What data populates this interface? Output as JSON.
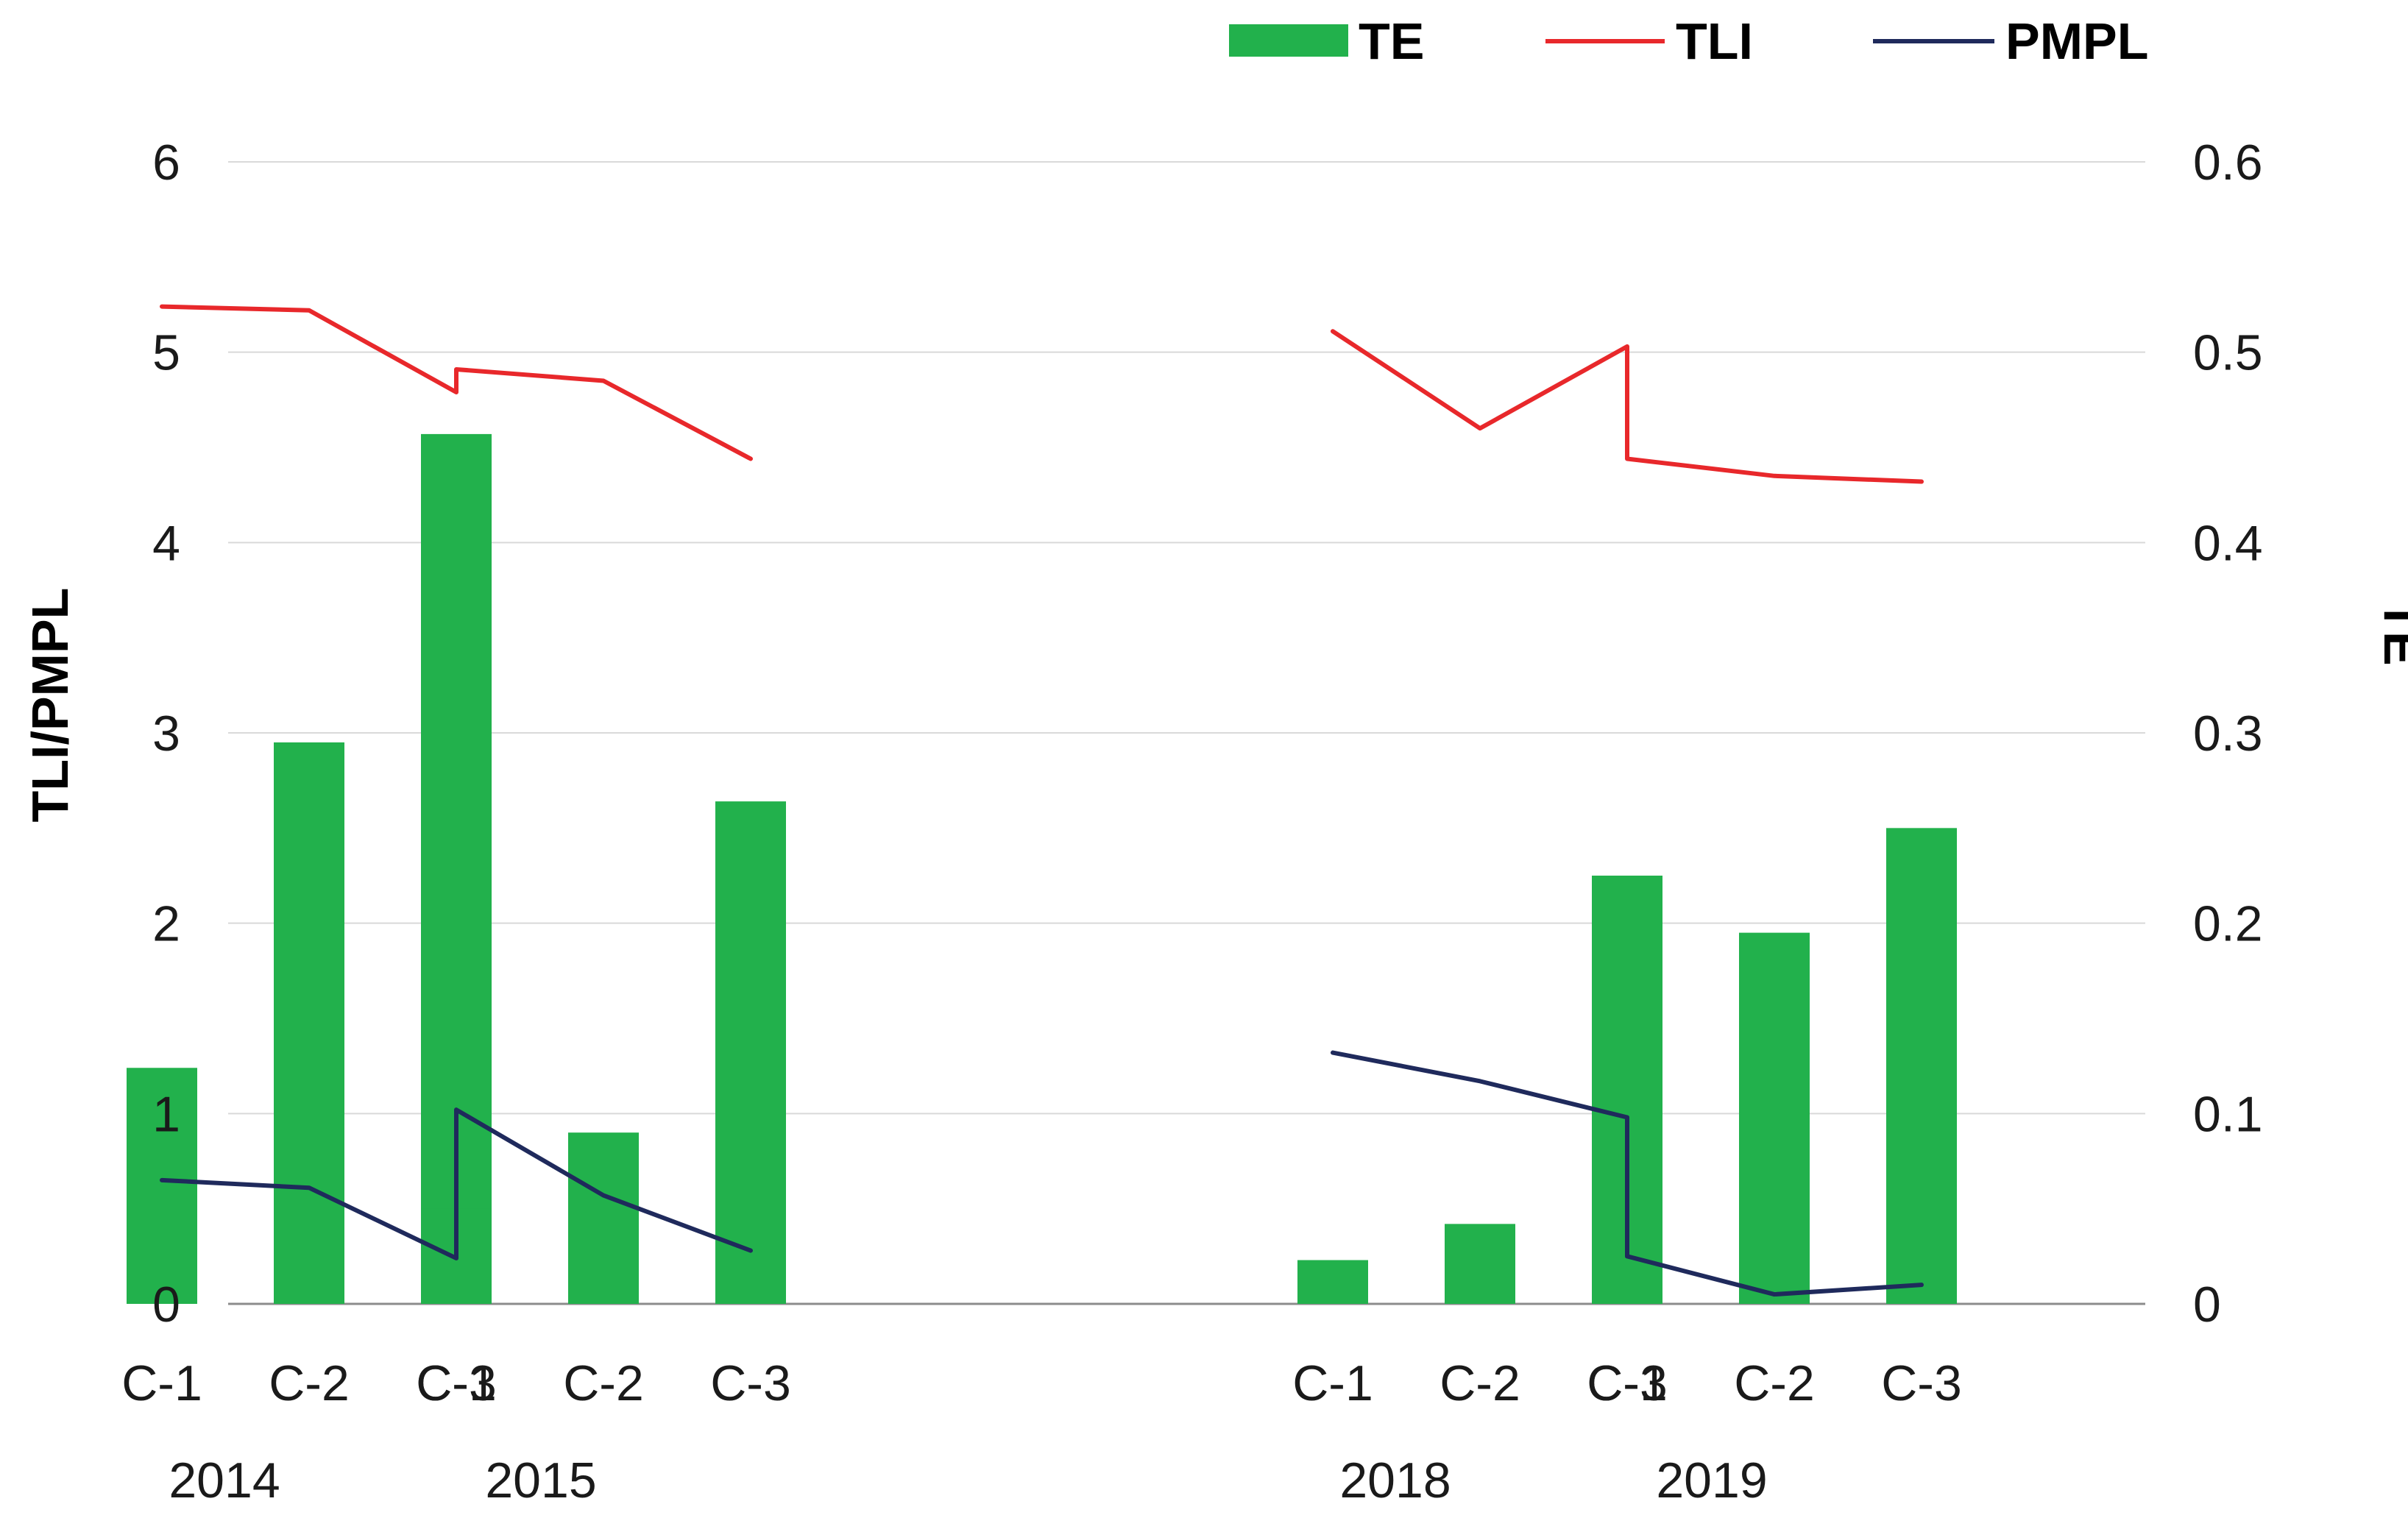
{
  "colors": {
    "te": "#22b14c",
    "tli": "#e8282b",
    "pmpl": "#1f2a5c",
    "grid": "#d9d9d9",
    "baseline": "#8c8c8c"
  },
  "chart_data": {
    "type": "bar",
    "title": "",
    "left_axis": {
      "label": "TLI/PMPL",
      "ylim": [
        0,
        6
      ],
      "ticks": [
        "0",
        "1",
        "2",
        "3",
        "4",
        "5",
        "6"
      ]
    },
    "right_axis": {
      "label": "TE",
      "ylim": [
        0,
        0.6
      ],
      "ticks": [
        "0",
        "0.1",
        "0.2",
        "0.3",
        "0.4",
        "0.5",
        "0.6"
      ]
    },
    "legend": {
      "placement": "top-right",
      "entries": [
        {
          "name": "TE",
          "kind": "bar"
        },
        {
          "name": "TLI",
          "kind": "line"
        },
        {
          "name": "PMPL",
          "kind": "line"
        }
      ]
    },
    "groups": [
      {
        "name": "2014",
        "categories": [
          "C-1",
          "C-2",
          "C-3"
        ],
        "te": [
          0.124,
          0.295,
          0.457
        ],
        "tli": [
          5.24,
          5.22,
          4.79
        ],
        "pmpl": [
          0.65,
          0.61,
          0.24
        ]
      },
      {
        "name": "2015",
        "categories": [
          "C-1",
          "C-2",
          "C-3"
        ],
        "te": [
          0.05,
          0.09,
          0.264
        ],
        "tli": [
          4.91,
          4.85,
          4.44
        ],
        "pmpl": [
          1.02,
          0.57,
          0.28
        ]
      },
      {
        "name": "2018",
        "categories": [
          "C-1",
          "C-2",
          "C-3"
        ],
        "te": [
          0.023,
          0.042,
          0.103
        ],
        "tli": [
          5.11,
          4.6,
          5.03
        ],
        "pmpl": [
          1.32,
          1.17,
          0.98
        ]
      },
      {
        "name": "2019",
        "categories": [
          "C-1",
          "C-2",
          "C-3"
        ],
        "te": [
          0.225,
          0.195,
          0.25
        ],
        "tli": [
          4.44,
          4.35,
          4.32
        ],
        "pmpl": [
          0.25,
          0.05,
          0.1
        ]
      }
    ]
  }
}
